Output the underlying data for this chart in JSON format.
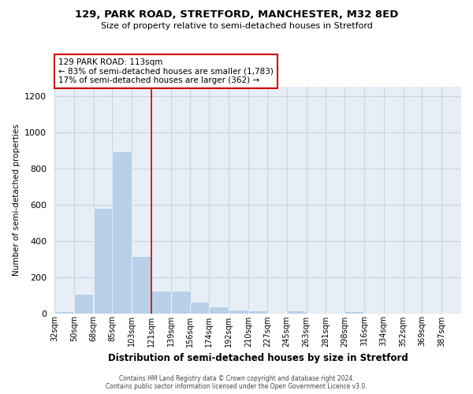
{
  "title1": "129, PARK ROAD, STRETFORD, MANCHESTER, M32 8ED",
  "title2": "Size of property relative to semi-detached houses in Stretford",
  "xlabel": "Distribution of semi-detached houses by size in Stretford",
  "ylabel": "Number of semi-detached properties",
  "footer1": "Contains HM Land Registry data © Crown copyright and database right 2024.",
  "footer2": "Contains public sector information licensed under the Open Government Licence v3.0.",
  "annotation_line1": "129 PARK ROAD: 113sqm",
  "annotation_line2": "← 83% of semi-detached houses are smaller (1,783)",
  "annotation_line3": "17% of semi-detached houses are larger (362) →",
  "bar_color": "#b8d0e8",
  "grid_color": "#c8d4e4",
  "bg_color": "#e8eef6",
  "redline_color": "#cc0000",
  "redline_x": 121,
  "categories": [
    "32sqm",
    "50sqm",
    "68sqm",
    "85sqm",
    "103sqm",
    "121sqm",
    "139sqm",
    "156sqm",
    "174sqm",
    "192sqm",
    "210sqm",
    "227sqm",
    "245sqm",
    "263sqm",
    "281sqm",
    "298sqm",
    "316sqm",
    "334sqm",
    "352sqm",
    "369sqm",
    "387sqm"
  ],
  "cat_values": [
    32,
    50,
    68,
    85,
    103,
    121,
    139,
    156,
    174,
    192,
    210,
    227,
    245,
    263,
    281,
    298,
    316,
    334,
    352,
    369,
    387
  ],
  "bin_width": 18,
  "values": [
    10,
    105,
    580,
    895,
    315,
    125,
    125,
    65,
    35,
    20,
    15,
    0,
    15,
    0,
    0,
    10,
    0,
    0,
    0,
    0,
    0
  ],
  "ylim": [
    0,
    1250
  ],
  "yticks": [
    0,
    200,
    400,
    600,
    800,
    1000,
    1200
  ],
  "title1_fontsize": 9.5,
  "title2_fontsize": 8.0,
  "ylabel_fontsize": 7.5,
  "xlabel_fontsize": 8.5,
  "annotation_fontsize": 7.5
}
